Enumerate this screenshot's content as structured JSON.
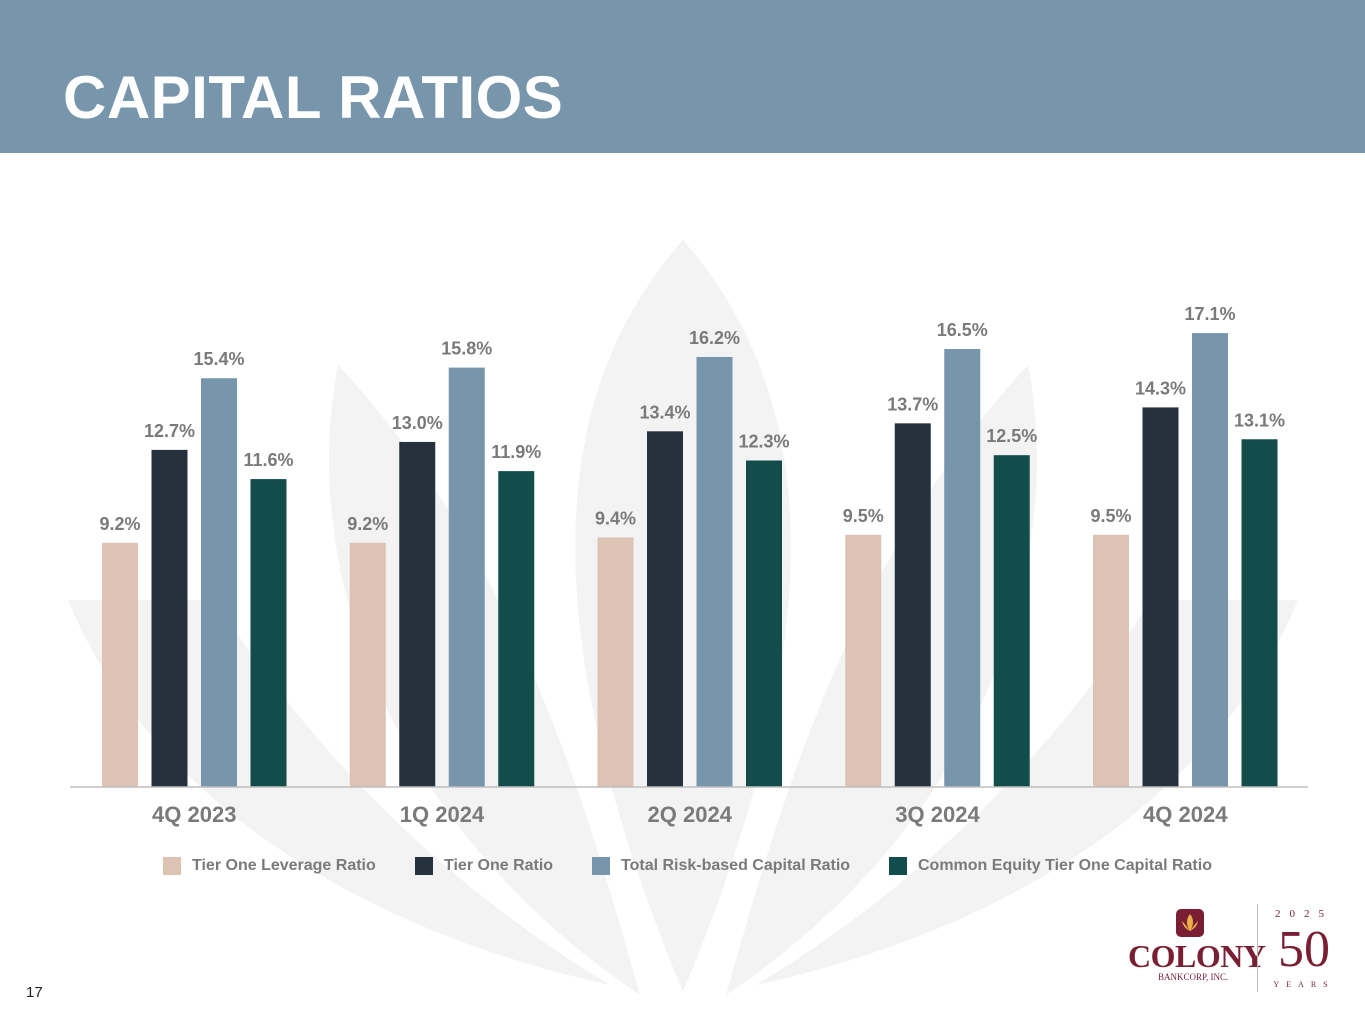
{
  "header": {
    "title": "CAPITAL RATIOS"
  },
  "page_number": "17",
  "logo": {
    "name": "COLONY",
    "subtitle": "BANKCORP, INC.",
    "year": "2025",
    "anniversary": "50",
    "years_label": "YEARS"
  },
  "colors": {
    "header_bg": "#7896ab",
    "tier_one_leverage": "#dcc3b4",
    "tier_one": "#25323d",
    "total_risk_based": "#7896ab",
    "cet1": "#134d4b",
    "brand": "#7a1f33"
  },
  "chart_data": {
    "type": "bar",
    "title": "",
    "xlabel": "",
    "ylabel": "",
    "ylim": [
      0,
      19.1
    ],
    "grid": false,
    "legend_position": "bottom",
    "categories": [
      "4Q 2023",
      "1Q 2024",
      "2Q 2024",
      "3Q 2024",
      "4Q 2024"
    ],
    "series": [
      {
        "name": "Tier One Leverage Ratio",
        "color": "#dcc3b4",
        "values": [
          9.2,
          9.2,
          9.4,
          9.5,
          9.5
        ]
      },
      {
        "name": "Tier One Ratio",
        "color": "#25323d",
        "values": [
          12.7,
          13.0,
          13.4,
          13.7,
          14.3
        ]
      },
      {
        "name": "Total Risk-based Capital Ratio",
        "color": "#7896ab",
        "values": [
          15.4,
          15.8,
          16.2,
          16.5,
          17.1
        ]
      },
      {
        "name": "Common Equity Tier One Capital Ratio",
        "color": "#134d4b",
        "values": [
          11.6,
          11.9,
          12.3,
          12.5,
          13.1
        ]
      }
    ],
    "value_suffix": "%"
  }
}
